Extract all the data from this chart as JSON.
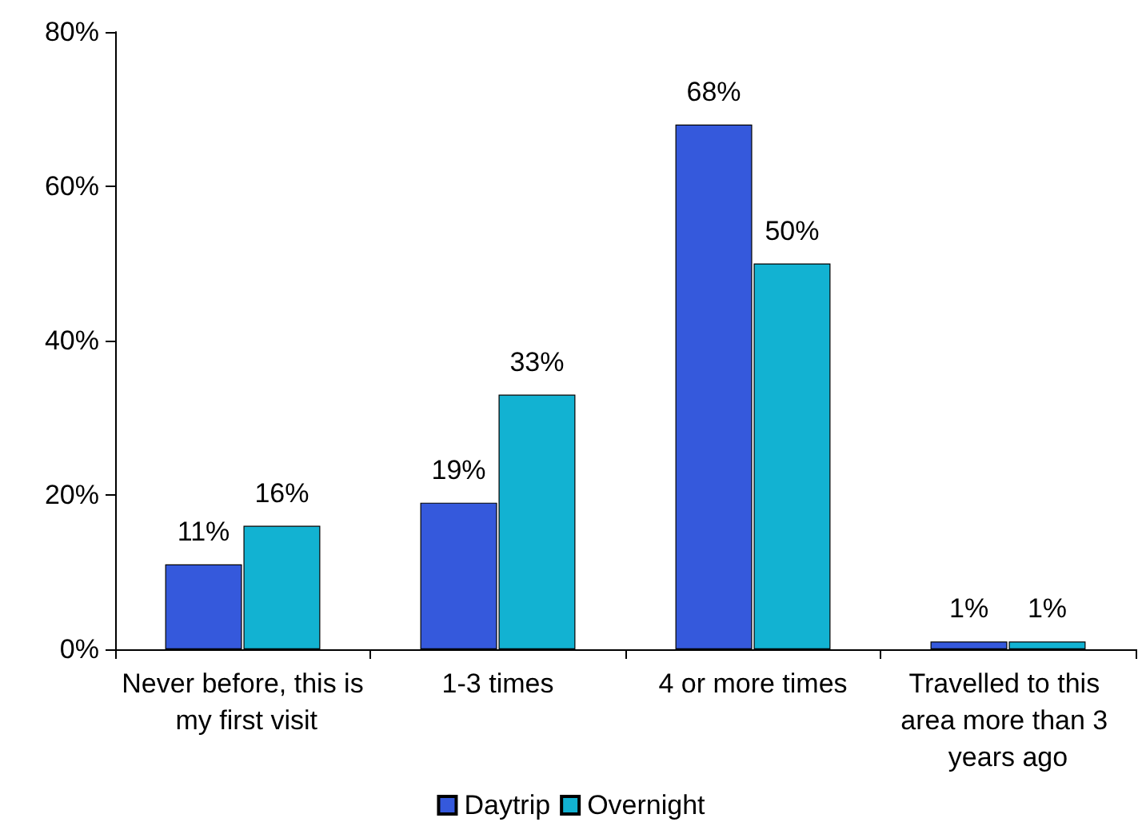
{
  "chart_data": {
    "type": "bar",
    "categories": [
      "Never before, this is my first visit",
      "1-3 times",
      "4 or more times",
      "Travelled to this area more than 3 years ago"
    ],
    "series": [
      {
        "name": "Daytrip",
        "color": "#3559dc",
        "values": [
          11,
          19,
          68,
          1
        ],
        "value_labels": [
          "11%",
          "19%",
          "68%",
          "1%"
        ]
      },
      {
        "name": "Overnight",
        "color": "#12b2d2",
        "values": [
          16,
          33,
          50,
          1
        ],
        "value_labels": [
          "16%",
          "33%",
          "50%",
          "1%"
        ]
      }
    ],
    "ylim": [
      0,
      80
    ],
    "yticks": [
      {
        "value": 0,
        "label": "0%"
      },
      {
        "value": 20,
        "label": "20%"
      },
      {
        "value": 40,
        "label": "40%"
      },
      {
        "value": 60,
        "label": "60%"
      },
      {
        "value": 80,
        "label": "80%"
      }
    ],
    "grid": false,
    "legend": "bottom"
  }
}
